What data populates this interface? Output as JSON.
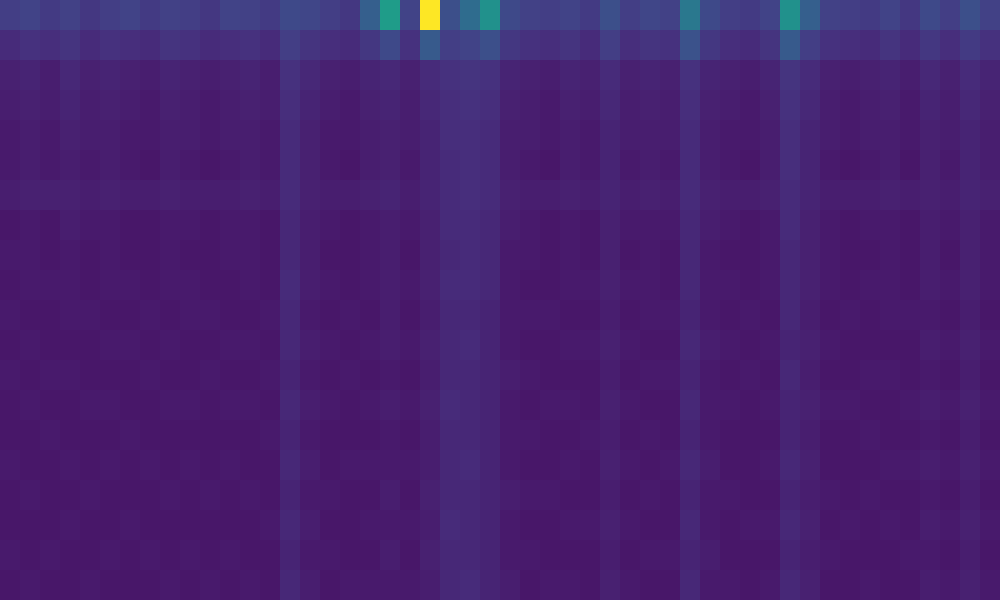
{
  "chart_data": {
    "type": "heatmap",
    "color": "Viridis",
    "zlim": [
      0,
      100
    ],
    "tick_labels": false,
    "grid": false,
    "cells": [
      [
        18,
        20,
        17,
        19,
        16,
        18,
        20,
        17,
        19,
        18,
        16,
        20,
        19,
        17,
        22,
        21,
        18,
        16,
        30,
        55,
        20,
        100,
        24,
        35,
        50,
        22,
        19,
        18,
        20,
        17,
        24,
        18,
        21,
        19,
        40,
        22,
        18,
        17,
        20,
        50,
        30,
        19,
        18,
        17,
        20,
        16,
        22,
        18,
        24,
        19
      ],
      [
        12,
        14,
        13,
        15,
        12,
        14,
        13,
        12,
        15,
        14,
        12,
        13,
        14,
        12,
        18,
        15,
        13,
        12,
        16,
        22,
        14,
        28,
        18,
        20,
        24,
        16,
        14,
        13,
        15,
        12,
        18,
        13,
        15,
        14,
        25,
        16,
        13,
        12,
        15,
        28,
        18,
        14,
        13,
        12,
        15,
        12,
        16,
        13,
        17,
        14
      ],
      [
        9,
        10,
        8,
        11,
        9,
        10,
        9,
        8,
        10,
        9,
        8,
        9,
        10,
        8,
        14,
        11,
        9,
        8,
        10,
        11,
        9,
        12,
        14,
        15,
        14,
        10,
        9,
        8,
        10,
        9,
        12,
        9,
        10,
        9,
        14,
        10,
        9,
        8,
        10,
        15,
        12,
        9,
        8,
        9,
        10,
        8,
        11,
        9,
        12,
        10
      ],
      [
        8,
        9,
        8,
        10,
        8,
        9,
        8,
        7,
        9,
        8,
        7,
        8,
        9,
        8,
        13,
        10,
        8,
        7,
        9,
        10,
        8,
        11,
        13,
        14,
        13,
        9,
        8,
        7,
        9,
        8,
        11,
        8,
        9,
        8,
        13,
        9,
        8,
        7,
        9,
        14,
        11,
        8,
        7,
        8,
        9,
        7,
        10,
        8,
        11,
        9
      ],
      [
        7,
        8,
        7,
        9,
        8,
        8,
        7,
        7,
        8,
        8,
        7,
        8,
        8,
        7,
        12,
        9,
        7,
        7,
        8,
        9,
        8,
        10,
        13,
        13,
        12,
        8,
        8,
        7,
        8,
        7,
        10,
        8,
        8,
        8,
        12,
        8,
        7,
        7,
        8,
        13,
        10,
        8,
        7,
        8,
        8,
        7,
        9,
        8,
        10,
        8
      ],
      [
        7,
        8,
        7,
        8,
        7,
        8,
        7,
        6,
        8,
        7,
        6,
        7,
        8,
        7,
        12,
        9,
        7,
        6,
        8,
        9,
        7,
        10,
        12,
        13,
        12,
        8,
        7,
        6,
        8,
        7,
        10,
        7,
        8,
        7,
        12,
        8,
        7,
        6,
        8,
        13,
        10,
        7,
        6,
        7,
        8,
        6,
        9,
        7,
        10,
        8
      ],
      [
        8,
        9,
        9,
        9,
        8,
        9,
        8,
        8,
        9,
        8,
        8,
        8,
        9,
        8,
        12,
        9,
        8,
        8,
        9,
        10,
        8,
        10,
        12,
        13,
        12,
        9,
        8,
        8,
        9,
        8,
        10,
        8,
        9,
        8,
        12,
        9,
        8,
        8,
        9,
        12,
        10,
        8,
        8,
        8,
        9,
        8,
        9,
        8,
        10,
        9
      ],
      [
        6,
        7,
        6,
        8,
        7,
        7,
        6,
        6,
        7,
        7,
        6,
        7,
        7,
        6,
        11,
        8,
        7,
        6,
        7,
        8,
        7,
        9,
        12,
        12,
        11,
        8,
        7,
        6,
        7,
        6,
        9,
        7,
        7,
        7,
        11,
        8,
        7,
        6,
        7,
        12,
        9,
        7,
        6,
        7,
        7,
        6,
        8,
        7,
        9,
        7
      ],
      [
        7,
        7,
        6,
        7,
        6,
        7,
        6,
        6,
        7,
        6,
        6,
        7,
        7,
        6,
        11,
        8,
        6,
        6,
        7,
        8,
        6,
        9,
        11,
        12,
        11,
        7,
        7,
        6,
        7,
        6,
        9,
        6,
        7,
        6,
        11,
        7,
        6,
        6,
        7,
        11,
        9,
        7,
        6,
        6,
        7,
        6,
        8,
        6,
        9,
        7
      ],
      [
        6,
        7,
        7,
        7,
        6,
        7,
        7,
        6,
        7,
        7,
        6,
        6,
        7,
        6,
        12,
        8,
        7,
        6,
        7,
        8,
        7,
        9,
        12,
        12,
        11,
        7,
        6,
        6,
        7,
        7,
        9,
        7,
        7,
        6,
        11,
        7,
        7,
        6,
        7,
        11,
        9,
        7,
        6,
        7,
        7,
        6,
        8,
        7,
        9,
        7
      ],
      [
        7,
        6,
        6,
        7,
        7,
        6,
        6,
        7,
        6,
        7,
        7,
        6,
        6,
        7,
        11,
        7,
        6,
        7,
        6,
        8,
        6,
        8,
        11,
        11,
        10,
        7,
        7,
        7,
        6,
        6,
        8,
        6,
        7,
        7,
        10,
        7,
        6,
        7,
        6,
        11,
        8,
        6,
        7,
        6,
        7,
        7,
        7,
        6,
        8,
        6
      ],
      [
        6,
        7,
        6,
        6,
        6,
        7,
        7,
        6,
        7,
        6,
        6,
        7,
        7,
        6,
        11,
        8,
        7,
        6,
        7,
        8,
        7,
        9,
        11,
        12,
        10,
        7,
        6,
        6,
        7,
        7,
        9,
        7,
        6,
        6,
        11,
        8,
        7,
        6,
        7,
        10,
        9,
        7,
        6,
        6,
        6,
        6,
        8,
        7,
        9,
        7
      ],
      [
        7,
        6,
        7,
        7,
        6,
        6,
        6,
        7,
        6,
        6,
        7,
        6,
        6,
        7,
        10,
        7,
        6,
        7,
        6,
        7,
        6,
        8,
        11,
        11,
        10,
        8,
        7,
        6,
        6,
        6,
        8,
        6,
        7,
        7,
        10,
        7,
        6,
        7,
        6,
        11,
        8,
        6,
        6,
        7,
        7,
        6,
        7,
        6,
        8,
        6
      ],
      [
        6,
        7,
        6,
        6,
        7,
        7,
        6,
        6,
        7,
        7,
        6,
        7,
        7,
        6,
        11,
        8,
        7,
        6,
        7,
        8,
        7,
        9,
        12,
        11,
        10,
        7,
        6,
        7,
        7,
        6,
        9,
        7,
        6,
        6,
        11,
        7,
        7,
        6,
        7,
        10,
        9,
        7,
        7,
        6,
        6,
        7,
        8,
        7,
        9,
        7
      ],
      [
        6,
        6,
        7,
        6,
        6,
        6,
        7,
        6,
        6,
        6,
        6,
        6,
        6,
        7,
        10,
        7,
        6,
        6,
        6,
        7,
        6,
        8,
        11,
        11,
        10,
        7,
        7,
        6,
        6,
        7,
        8,
        6,
        7,
        6,
        10,
        7,
        6,
        6,
        6,
        10,
        8,
        6,
        6,
        7,
        6,
        6,
        7,
        6,
        8,
        6
      ],
      [
        7,
        6,
        6,
        7,
        6,
        7,
        6,
        7,
        6,
        7,
        6,
        7,
        6,
        6,
        11,
        8,
        6,
        7,
        7,
        7,
        7,
        8,
        11,
        12,
        10,
        7,
        6,
        6,
        7,
        6,
        9,
        7,
        6,
        7,
        11,
        8,
        6,
        6,
        7,
        11,
        9,
        6,
        6,
        6,
        7,
        7,
        8,
        7,
        9,
        7
      ],
      [
        6,
        7,
        6,
        6,
        7,
        6,
        6,
        6,
        7,
        6,
        7,
        6,
        7,
        6,
        10,
        7,
        7,
        6,
        6,
        8,
        6,
        9,
        11,
        11,
        10,
        8,
        7,
        7,
        6,
        6,
        8,
        6,
        7,
        6,
        10,
        7,
        7,
        6,
        6,
        10,
        8,
        7,
        6,
        7,
        6,
        6,
        7,
        6,
        8,
        6
      ],
      [
        6,
        6,
        6,
        7,
        6,
        6,
        7,
        6,
        6,
        6,
        6,
        6,
        6,
        7,
        11,
        8,
        6,
        6,
        7,
        7,
        7,
        8,
        12,
        11,
        10,
        7,
        6,
        6,
        7,
        7,
        9,
        7,
        6,
        6,
        11,
        7,
        6,
        7,
        7,
        11,
        9,
        6,
        7,
        6,
        7,
        6,
        8,
        7,
        9,
        7
      ],
      [
        7,
        6,
        7,
        6,
        6,
        7,
        6,
        7,
        6,
        7,
        6,
        7,
        6,
        6,
        10,
        7,
        7,
        6,
        6,
        8,
        6,
        9,
        11,
        11,
        10,
        7,
        7,
        6,
        6,
        6,
        8,
        6,
        7,
        7,
        10,
        8,
        6,
        6,
        6,
        10,
        8,
        7,
        6,
        6,
        6,
        7,
        7,
        6,
        8,
        6
      ],
      [
        6,
        7,
        6,
        6,
        7,
        6,
        6,
        6,
        7,
        6,
        7,
        6,
        7,
        6,
        11,
        8,
        6,
        7,
        7,
        7,
        7,
        8,
        11,
        12,
        10,
        8,
        6,
        7,
        7,
        6,
        9,
        7,
        6,
        6,
        11,
        7,
        7,
        6,
        7,
        11,
        9,
        6,
        6,
        7,
        6,
        6,
        8,
        7,
        9,
        7
      ]
    ]
  }
}
